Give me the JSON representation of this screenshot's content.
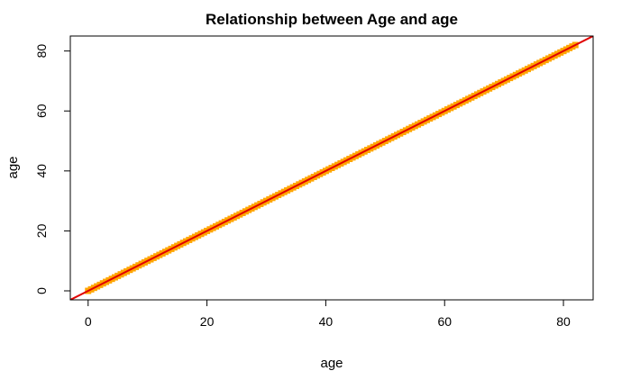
{
  "chart_data": {
    "type": "scatter",
    "title": "Relationship between Age and age",
    "xlabel": "age",
    "ylabel": "age",
    "xlim": [
      -3,
      85
    ],
    "ylim": [
      -3,
      85
    ],
    "xticks": [
      0,
      20,
      40,
      60,
      80
    ],
    "yticks": [
      0,
      20,
      40,
      60,
      80
    ],
    "grid": false,
    "colors": {
      "points": "#FFA500",
      "fit_line": "#E00000",
      "box": "#000000"
    },
    "series": [
      {
        "marker": "filled-square",
        "x": [
          0,
          0.5,
          1,
          1.5,
          2,
          2.5,
          3,
          3.5,
          4,
          4.5,
          5,
          5.5,
          6,
          6.5,
          7,
          7.5,
          8,
          8.5,
          9,
          9.5,
          10,
          10.5,
          11,
          11.5,
          12,
          12.5,
          13,
          13.5,
          14,
          14.5,
          15,
          15.5,
          16,
          16.5,
          17,
          17.5,
          18,
          18.5,
          19,
          19.5,
          20,
          20.5,
          21,
          21.5,
          22,
          22.5,
          23,
          23.5,
          24,
          24.5,
          25,
          25.5,
          26,
          26.5,
          27,
          27.5,
          28,
          28.5,
          29,
          29.5,
          30,
          30.5,
          31,
          31.5,
          32,
          32.5,
          33,
          33.5,
          34,
          34.5,
          35,
          35.5,
          36,
          36.5,
          37,
          37.5,
          38,
          38.5,
          39,
          39.5,
          40,
          40.5,
          41,
          41.5,
          42,
          42.5,
          43,
          43.5,
          44,
          44.5,
          45,
          45.5,
          46,
          46.5,
          47,
          47.5,
          48,
          48.5,
          49,
          49.5,
          50,
          50.5,
          51,
          51.5,
          52,
          52.5,
          53,
          53.5,
          54,
          54.5,
          55,
          55.5,
          56,
          56.5,
          57,
          57.5,
          58,
          58.5,
          59,
          59.5,
          60,
          60.5,
          61,
          61.5,
          62,
          62.5,
          63,
          63.5,
          64,
          64.5,
          65,
          65.5,
          66,
          66.5,
          67,
          67.5,
          68,
          68.5,
          69,
          69.5,
          70,
          70.5,
          71,
          71.5,
          72,
          72.5,
          73,
          73.5,
          74,
          74.5,
          75,
          75.5,
          76,
          76.5,
          77,
          77.5,
          78,
          78.5,
          79,
          79.5,
          80,
          80.5,
          81,
          81.5,
          82
        ],
        "y_equals_x": true
      }
    ],
    "fit_line": {
      "slope": 1,
      "intercept": 0
    }
  }
}
